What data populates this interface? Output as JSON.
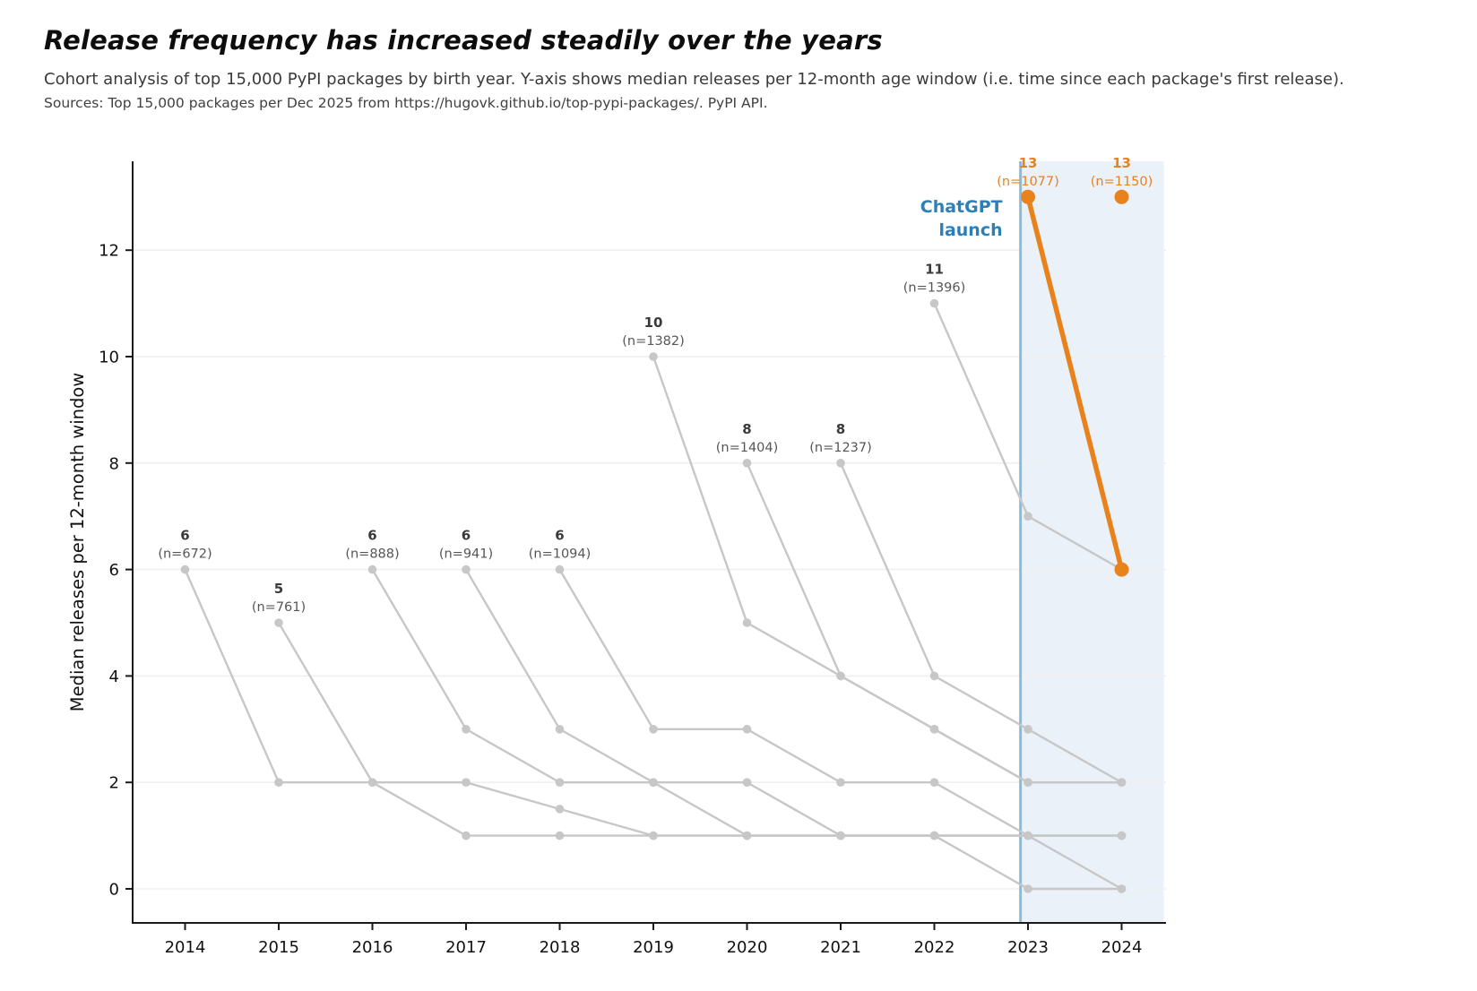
{
  "title": "Release frequency has increased steadily over the years",
  "subtitle": "Cohort analysis of top 15,000 PyPI packages by birth year. Y-axis shows median releases per 12-month age window (i.e. time since each package's first release).",
  "sources": "Sources: Top 15,000 packages per Dec 2025 from https://hugovk.github.io/top-pypi-packages/. PyPI API.",
  "colors": {
    "cohort_gray": "#c7c7c7",
    "highlight_orange": "#e8821d",
    "annotation_blue": "#2e7fb8",
    "event_line_blue": "#8abbdc",
    "shade_blue": "#eaf1f8",
    "gridline": "#efefef",
    "axis": "#1a1a1a",
    "tick_label": "#111111",
    "value_label_dark": "#3a3a3a",
    "n_label_gray": "#565656"
  },
  "chart_data": {
    "type": "line",
    "title": "Release frequency has increased steadily over the years",
    "xlabel": "",
    "ylabel": "Median releases per 12-month window",
    "x_ticks": [
      2014,
      2015,
      2016,
      2017,
      2018,
      2019,
      2020,
      2021,
      2022,
      2023,
      2024
    ],
    "y_ticks": [
      0,
      2,
      4,
      6,
      8,
      10,
      12
    ],
    "xlim": [
      2013.44,
      2024.46
    ],
    "ylim": [
      -0.64,
      13.66
    ],
    "grid": "horizontal",
    "legend": "none",
    "event": {
      "label_line1": "ChatGPT",
      "label_line2": "launch",
      "x": 2022.92,
      "shade_from": 2022.92,
      "shade_to": 2024.45
    },
    "cohorts": [
      {
        "birth_year": 2014,
        "n": 672,
        "peak_label": "6",
        "n_label": "(n=672)",
        "highlight": false,
        "values": [
          6,
          2,
          2,
          1,
          1,
          1,
          1,
          1,
          1,
          0,
          0
        ]
      },
      {
        "birth_year": 2015,
        "n": 761,
        "peak_label": "5",
        "n_label": "(n=761)",
        "highlight": false,
        "values": [
          5,
          2,
          2,
          1.5,
          1,
          1,
          1,
          1,
          1,
          0
        ]
      },
      {
        "birth_year": 2016,
        "n": 888,
        "peak_label": "6",
        "n_label": "(n=888)",
        "highlight": false,
        "values": [
          6,
          3,
          2,
          2,
          2,
          1,
          1,
          1,
          1
        ]
      },
      {
        "birth_year": 2017,
        "n": 941,
        "peak_label": "6",
        "n_label": "(n=941)",
        "highlight": false,
        "values": [
          6,
          3,
          2,
          1,
          1,
          1,
          1,
          1
        ]
      },
      {
        "birth_year": 2018,
        "n": 1094,
        "peak_label": "6",
        "n_label": "(n=1094)",
        "highlight": false,
        "values": [
          6,
          3,
          3,
          2,
          2,
          1,
          1
        ]
      },
      {
        "birth_year": 2019,
        "n": 1382,
        "peak_label": "10",
        "n_label": "(n=1382)",
        "highlight": false,
        "values": [
          10,
          5,
          4,
          3,
          2,
          2
        ]
      },
      {
        "birth_year": 2020,
        "n": 1404,
        "peak_label": "8",
        "n_label": "(n=1404)",
        "highlight": false,
        "values": [
          8,
          4,
          3,
          2,
          2
        ]
      },
      {
        "birth_year": 2021,
        "n": 1237,
        "peak_label": "8",
        "n_label": "(n=1237)",
        "highlight": false,
        "values": [
          8,
          4,
          3,
          2
        ]
      },
      {
        "birth_year": 2022,
        "n": 1396,
        "peak_label": "11",
        "n_label": "(n=1396)",
        "highlight": false,
        "values": [
          11,
          7,
          6
        ]
      },
      {
        "birth_year": 2023,
        "n": 1077,
        "peak_label": "13",
        "n_label": "(n=1077)",
        "highlight": true,
        "values": [
          13,
          6
        ]
      },
      {
        "birth_year": 2024,
        "n": 1150,
        "peak_label": "13",
        "n_label": "(n=1150)",
        "highlight": true,
        "values": [
          13
        ]
      }
    ]
  }
}
